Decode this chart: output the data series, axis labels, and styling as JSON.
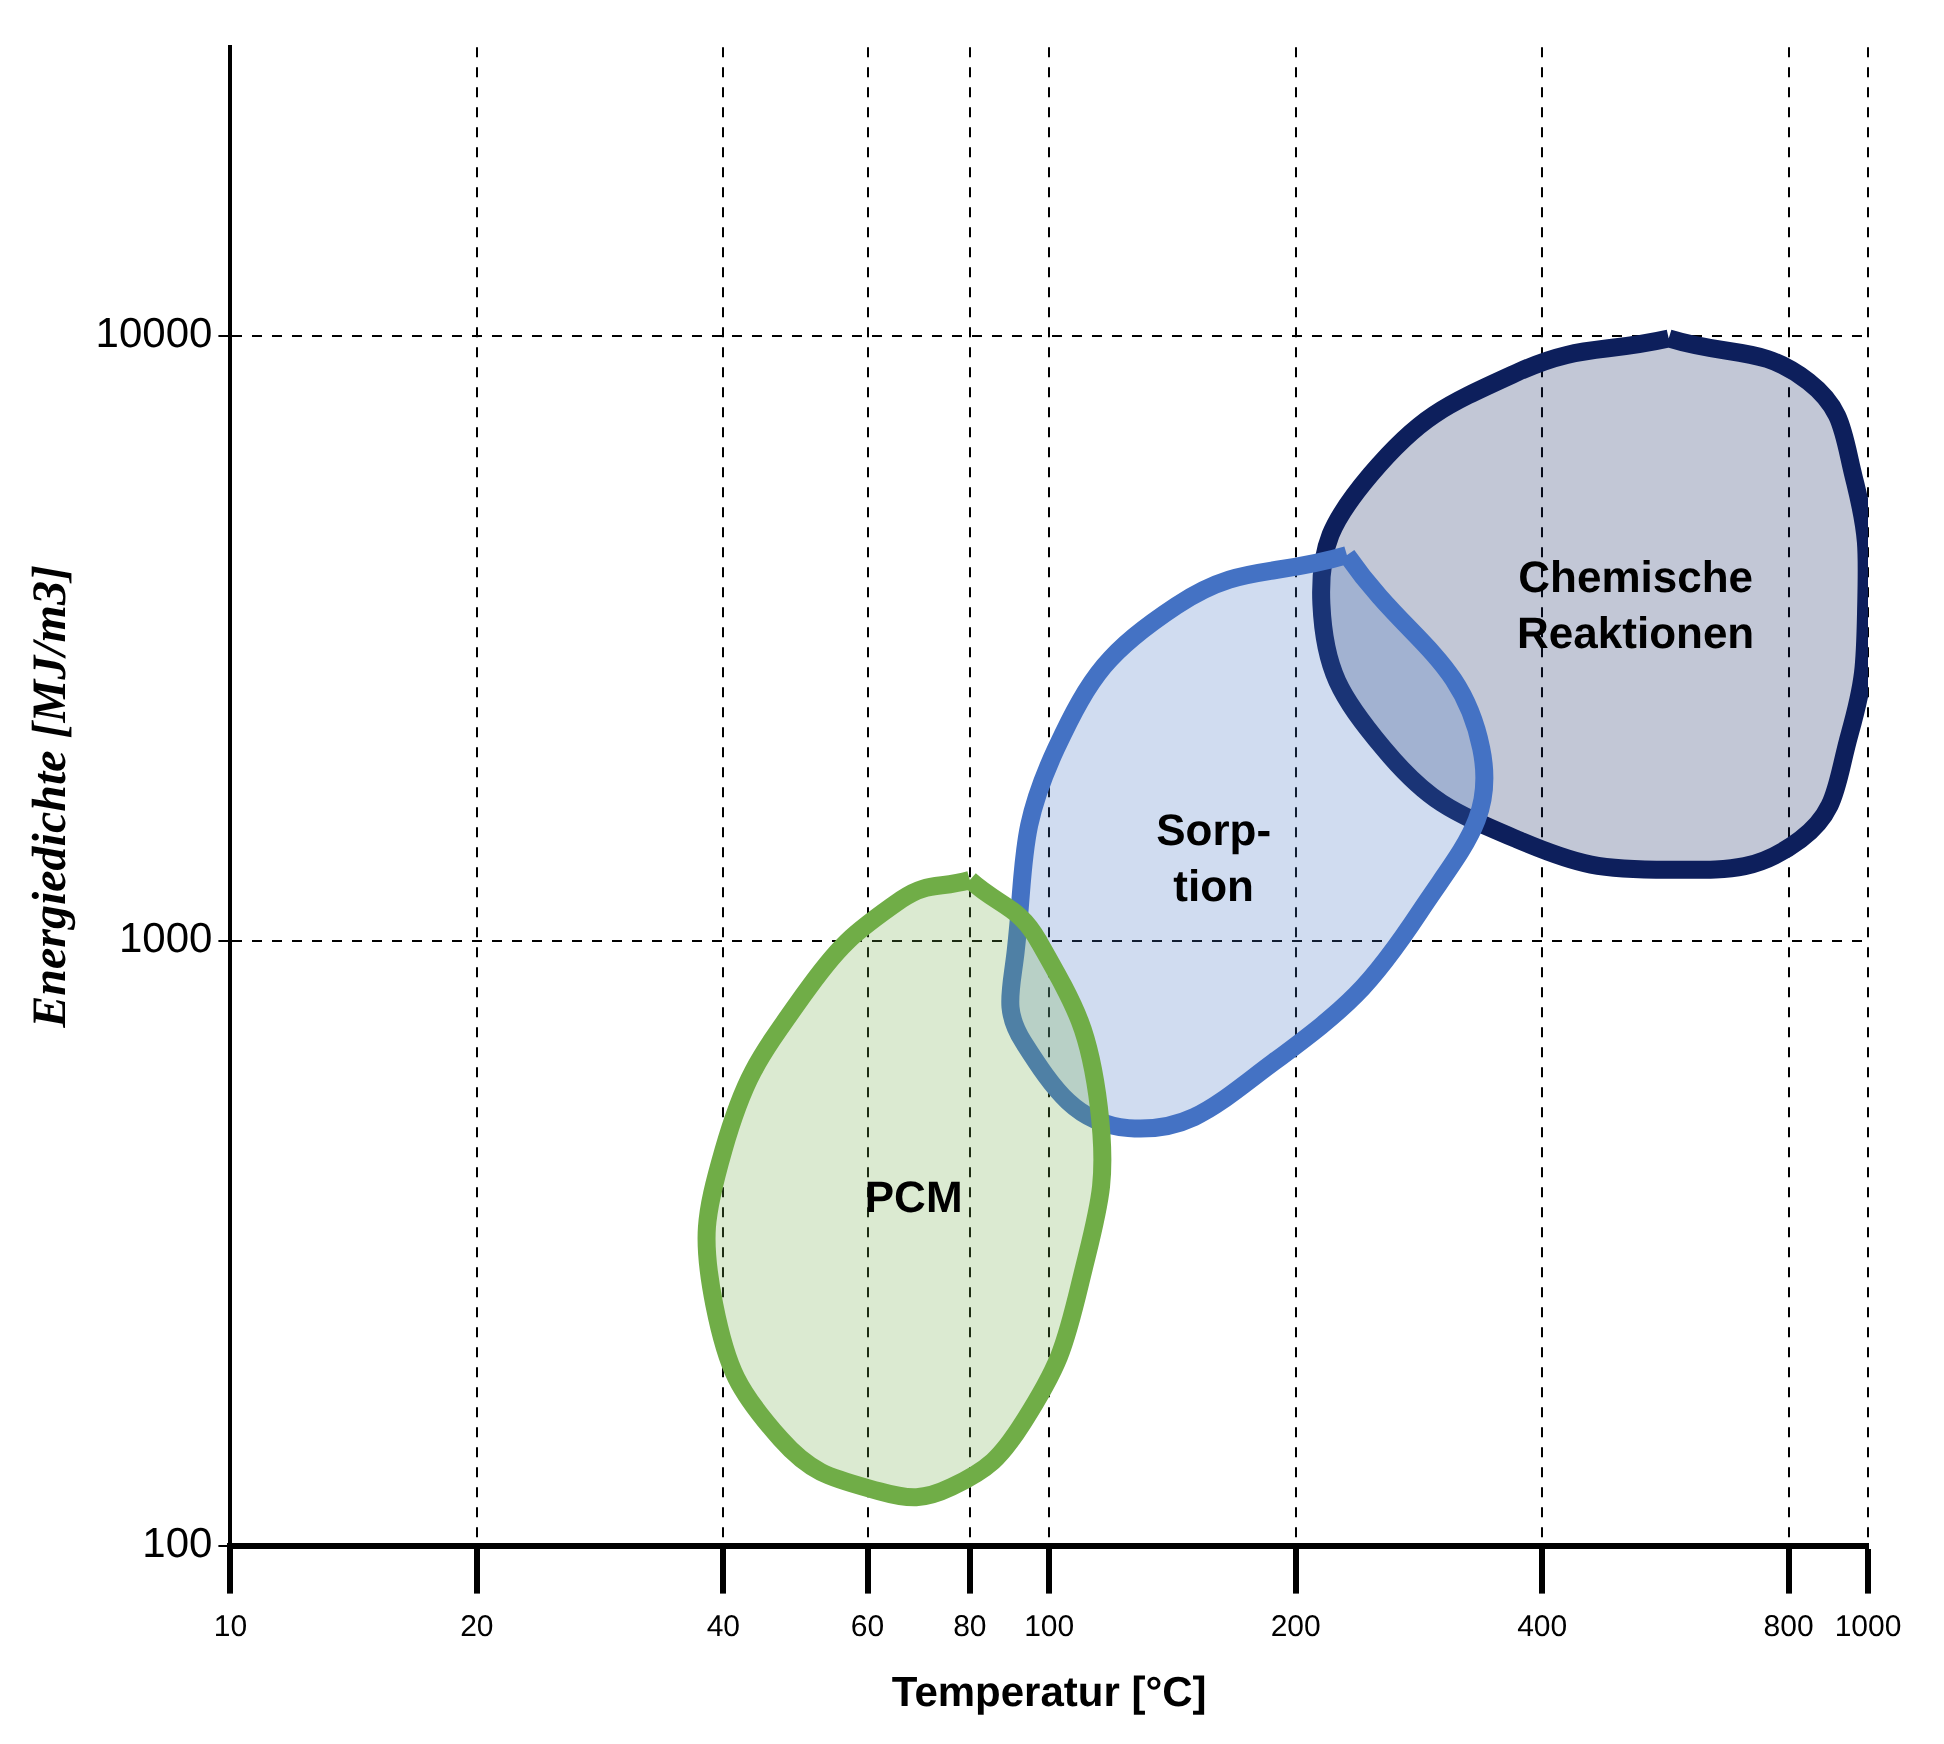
{
  "chart_data": {
    "type": "area",
    "xlabel": "Temperatur [°C]",
    "ylabel": "Energiedichte [MJ/m3]",
    "log": "xy",
    "xlim": [
      10,
      1000
    ],
    "ylim": [
      100,
      30000
    ],
    "xticks": [
      10,
      20,
      40,
      60,
      80,
      100,
      200,
      400,
      800,
      1000
    ],
    "yticks": [
      100,
      1000,
      10000
    ],
    "grid": true,
    "legend": false,
    "marker": "none",
    "line_style": "solid",
    "series": [
      {
        "name": "PCM",
        "color": "#70ad47",
        "x": [
          80,
          97,
          115,
          109,
          93,
          76,
          62,
          47,
          39,
          40,
          50,
          66
        ],
        "values": [
          1260,
          1000,
          530,
          270,
          160,
          125,
          123,
          150,
          250,
          450,
          810,
          1170
        ]
      },
      {
        "name": "Sorp-tion",
        "color": "#4472c4",
        "x": [
          231,
          337,
          284,
          188,
          125,
          93,
          91,
          102,
          143
        ],
        "values": [
          4340,
          2080,
          1120,
          630,
          490,
          680,
          960,
          2080,
          3580
        ]
      },
      {
        "name": "Chemische Reaktionen",
        "color": "#0d1f5c",
        "x": [
          571,
          846,
          965,
          995,
          950,
          827,
          571,
          373,
          256,
          215,
          247,
          373
        ],
        "values": [
          9900,
          8400,
          5700,
          3600,
          2200,
          1470,
          1310,
          1470,
          2080,
          3600,
          5900,
          8700
        ]
      }
    ]
  }
}
